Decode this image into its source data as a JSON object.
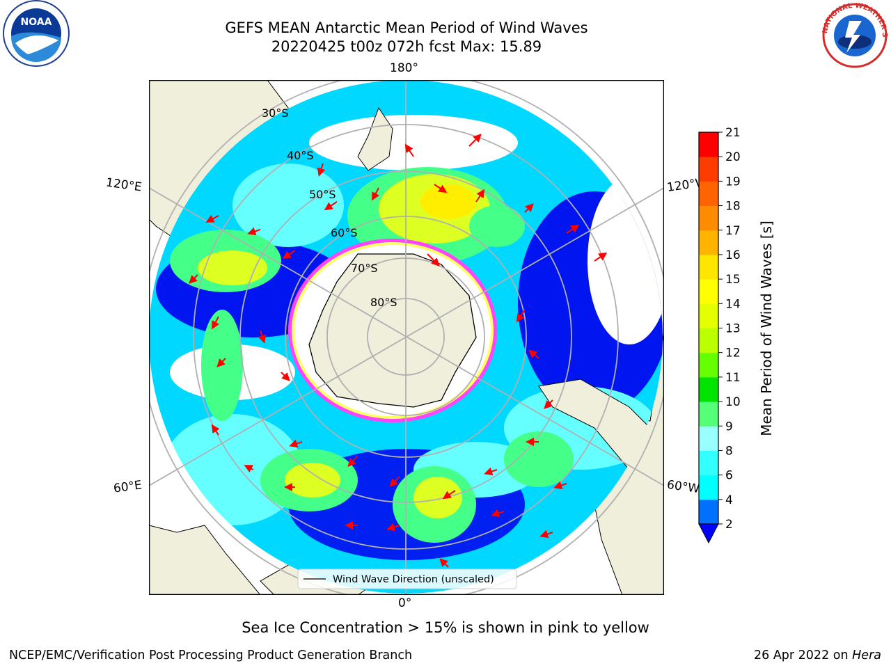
{
  "header": {
    "title_line1": "GEFS MEAN Antarctic Mean Period of Wind Waves",
    "title_line2": "20220425 t00z 072h fcst   Max: 15.89"
  },
  "logos": {
    "left": {
      "name": "noaa-logo",
      "text": "NOAA"
    },
    "right": {
      "name": "nws-logo",
      "text": "NATIONAL WEATHER SERVICE"
    }
  },
  "map": {
    "projection": "south-polar-stereographic",
    "longitude_labels": {
      "top": "180°",
      "bottom": "0°",
      "upper_left": "120°E",
      "upper_right": "120°W",
      "lower_left": "60°E",
      "lower_right": "60°W"
    },
    "latitude_labels": [
      "30°S",
      "40°S",
      "50°S",
      "60°S",
      "70°S",
      "80°S"
    ],
    "legend_label": "Wind Wave Direction (unscaled)",
    "colors": {
      "land": "#efefdc",
      "ice_edge": [
        "#ff44ff",
        "#ffff66"
      ],
      "arrow": "#ff0000",
      "grid": "#b0b0b0"
    }
  },
  "colorbar": {
    "label": "Mean Period of Wind Waves [s]",
    "ticks": [
      "21",
      "20",
      "19",
      "18",
      "17",
      "16",
      "15",
      "14",
      "13",
      "12",
      "11",
      "10",
      "9",
      "8",
      "6",
      "4",
      "2"
    ],
    "bins": [
      {
        "min": 2,
        "max": 4,
        "color": "#0070ff"
      },
      {
        "min": 4,
        "max": 6,
        "color": "#00ffff"
      },
      {
        "min": 6,
        "max": 8,
        "color": "#33ffff"
      },
      {
        "min": 8,
        "max": 9,
        "color": "#99ffff"
      },
      {
        "min": 9,
        "max": 10,
        "color": "#55ff77"
      },
      {
        "min": 10,
        "max": 11,
        "color": "#00e400"
      },
      {
        "min": 11,
        "max": 12,
        "color": "#66ff00"
      },
      {
        "min": 12,
        "max": 13,
        "color": "#bbff00"
      },
      {
        "min": 13,
        "max": 14,
        "color": "#e4ff00"
      },
      {
        "min": 14,
        "max": 15,
        "color": "#ffff00"
      },
      {
        "min": 15,
        "max": 16,
        "color": "#ffe600"
      },
      {
        "min": 16,
        "max": 17,
        "color": "#ffb400"
      },
      {
        "min": 17,
        "max": 18,
        "color": "#ff8c00"
      },
      {
        "min": 18,
        "max": 19,
        "color": "#ff6400"
      },
      {
        "min": 19,
        "max": 20,
        "color": "#ff3c00"
      },
      {
        "min": 20,
        "max": 21,
        "color": "#ff0000"
      }
    ],
    "under_color": "#0000ff"
  },
  "caption": "Sea Ice Concentration > 15% is shown in pink to yellow",
  "footer": {
    "left": "NCEP/EMC/Verification Post Processing Product Generation Branch",
    "right_prefix": "26 Apr 2022 on ",
    "right_host": "Hera"
  }
}
